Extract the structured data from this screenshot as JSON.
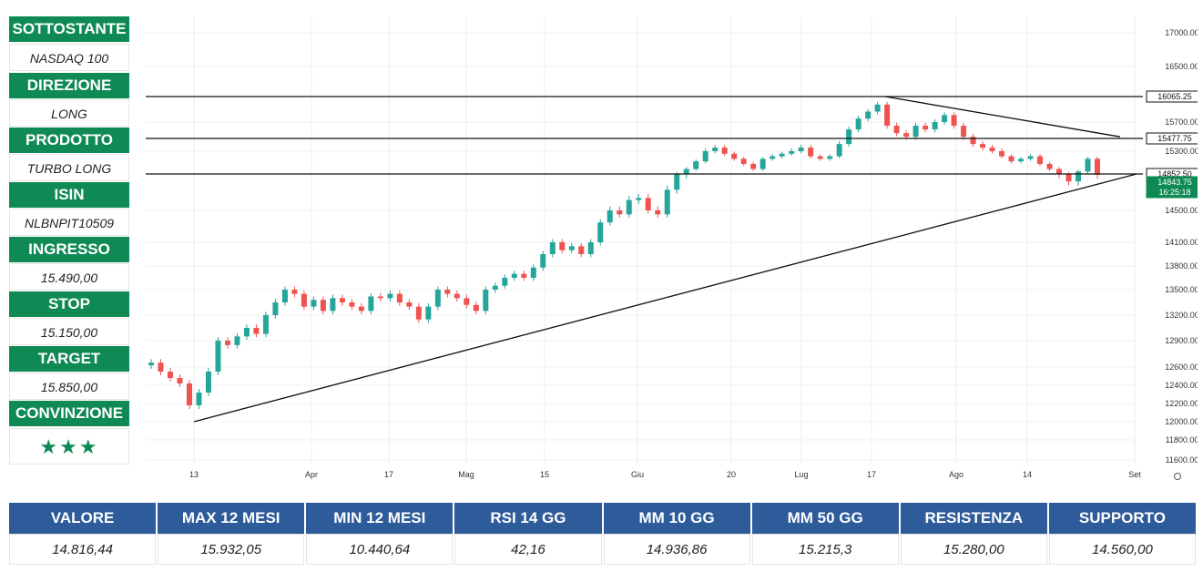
{
  "panel": {
    "items": [
      {
        "label": "SOTTOSTANTE",
        "value": "NASDAQ 100"
      },
      {
        "label": "DIREZIONE",
        "value": "LONG"
      },
      {
        "label": "PRODOTTO",
        "value": "TURBO LONG"
      },
      {
        "label": "ISIN",
        "value": "NLBNPIT10509"
      },
      {
        "label": "INGRESSO",
        "value": "15.490,00"
      },
      {
        "label": "STOP",
        "value": "15.150,00"
      },
      {
        "label": "TARGET",
        "value": "15.850,00"
      },
      {
        "label": "CONVINZIONE",
        "value": "★★★"
      }
    ]
  },
  "colors": {
    "green": "#0f8a55",
    "blue_header": "#2e5b9a",
    "bull": "#26a69a",
    "bear": "#ef5350"
  },
  "chart_data": {
    "type": "candlestick",
    "y_ticks": [
      "17000.00",
      "16500.00",
      "16065.25",
      "15700.00",
      "15477.75",
      "15300.00",
      "14852.50",
      "14843.75",
      "14500.00",
      "14100.00",
      "13800.00",
      "13500.00",
      "13200.00",
      "12900.00",
      "12600.00",
      "12400.00",
      "12200.00",
      "12000.00",
      "11800.00",
      "11600.00"
    ],
    "x_ticks": [
      "13",
      "Apr",
      "17",
      "Mag",
      "15",
      "Giu",
      "20",
      "Lug",
      "17",
      "Ago",
      "14",
      "Set"
    ],
    "price_labels": [
      {
        "text": "16065.25",
        "value": 16065.25,
        "style": "black"
      },
      {
        "text": "15477.75",
        "value": 15477.75,
        "style": "black"
      },
      {
        "text": "14852.50",
        "value": 14852.5,
        "style": "black"
      },
      {
        "text": "14843.75",
        "value": 14843.75,
        "style": "green"
      },
      {
        "text": "16:25:18",
        "value": null,
        "style": "green"
      }
    ],
    "horizontal_lines": [
      16065.25,
      15477.75,
      14852.5
    ],
    "trendlines": [
      {
        "from": {
          "date": "13 Mar",
          "value": 12000
        },
        "to": {
          "date": "Set",
          "value": 14852.5
        }
      },
      {
        "from": {
          "date": "18 Lug",
          "value": 16065
        },
        "to": {
          "date": "Set",
          "value": 15500
        }
      }
    ],
    "closes": [
      12650,
      12550,
      12480,
      12420,
      12180,
      12320,
      12550,
      12900,
      12850,
      12950,
      13050,
      12980,
      13200,
      13350,
      13500,
      13450,
      13300,
      13380,
      13250,
      13400,
      13350,
      13300,
      13250,
      13420,
      13400,
      13450,
      13350,
      13300,
      13150,
      13300,
      13500,
      13450,
      13400,
      13320,
      13250,
      13500,
      13550,
      13650,
      13700,
      13650,
      13780,
      13950,
      14100,
      14000,
      14050,
      13950,
      14100,
      14350,
      14500,
      14450,
      14600,
      14620,
      14500,
      14450,
      14700,
      14850,
      14950,
      15100,
      15300,
      15350,
      15250,
      15150,
      15050,
      14950,
      15150,
      15200,
      15250,
      15300,
      15350,
      15200,
      15150,
      15200,
      15400,
      15600,
      15750,
      15850,
      15950,
      15650,
      15550,
      15500,
      15650,
      15600,
      15700,
      15800,
      15650,
      15500,
      15400,
      15350,
      15300,
      15200,
      15100,
      15150,
      15200,
      15050,
      14950,
      14850,
      14780,
      14900,
      15150,
      14843.75
    ]
  },
  "table": {
    "headers": [
      "VALORE",
      "MAX 12 MESI",
      "MIN 12 MESI",
      "RSI 14 GG",
      "MM 10 GG",
      "MM 50 GG",
      "RESISTENZA",
      "SUPPORTO"
    ],
    "values": [
      "14.816,44",
      "15.932,05",
      "10.440,64",
      "42,16",
      "14.936,86",
      "15.215,3",
      "15.280,00",
      "14.560,00"
    ]
  }
}
